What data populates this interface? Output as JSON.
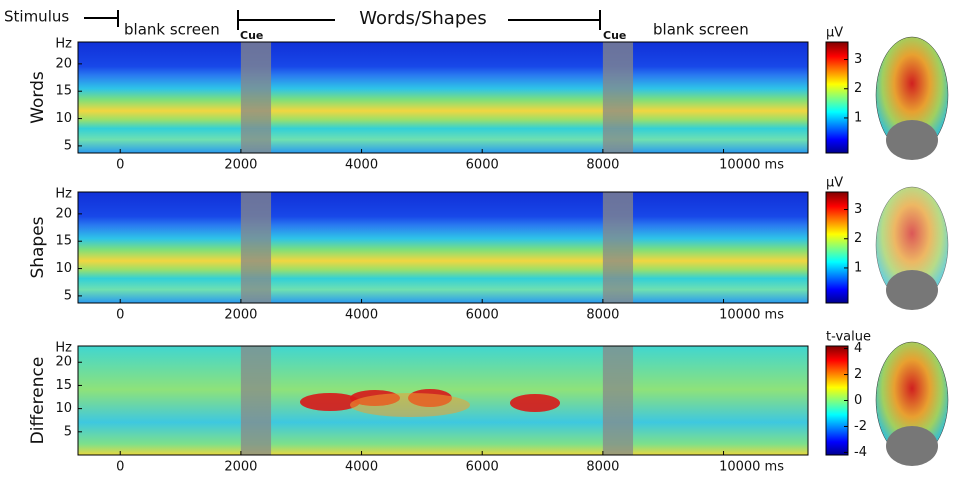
{
  "header": {
    "stimulus": "Stimulus",
    "blank_before": "blank screen",
    "phase": "Words/Shapes",
    "cue_start": "Cue",
    "cue_end": "Cue",
    "blank_after": "blank screen"
  },
  "chart_data": [
    {
      "type": "heatmap",
      "ylabel": "Words",
      "y_unit": "Hz",
      "xlim": [
        -700,
        11400
      ],
      "xticks": [
        0,
        2000,
        4000,
        6000,
        8000,
        {
          "value": 10000,
          "label": "10000 ms"
        }
      ],
      "ylim": [
        3.7,
        24
      ],
      "yticks": [
        5,
        10,
        15,
        20
      ],
      "highlight_spans": [
        [
          2000,
          2500
        ],
        [
          8000,
          8500
        ]
      ],
      "colorbar": {
        "label": "μV",
        "lim": [
          -0.2,
          3.6
        ],
        "ticks": [
          1,
          2,
          3
        ]
      }
    },
    {
      "type": "heatmap",
      "ylabel": "Shapes",
      "y_unit": "Hz",
      "xlim": [
        -700,
        11400
      ],
      "xticks": [
        0,
        2000,
        4000,
        6000,
        8000,
        {
          "value": 10000,
          "label": "10000 ms"
        }
      ],
      "ylim": [
        3.7,
        24
      ],
      "yticks": [
        5,
        10,
        15,
        20
      ],
      "highlight_spans": [
        [
          2000,
          2500
        ],
        [
          8000,
          8500
        ]
      ],
      "colorbar": {
        "label": "μV",
        "lim": [
          -0.2,
          3.6
        ],
        "ticks": [
          1,
          2,
          3
        ]
      }
    },
    {
      "type": "heatmap",
      "ylabel": "Difference",
      "y_unit": "Hz",
      "xlim": [
        -700,
        11400
      ],
      "xticks": [
        0,
        2000,
        4000,
        6000,
        8000,
        {
          "value": 10000,
          "label": "10000 ms"
        }
      ],
      "ylim": [
        0,
        23.5
      ],
      "yticks": [
        5,
        10,
        15,
        20
      ],
      "highlight_spans": [
        [
          2000,
          2500
        ],
        [
          8000,
          8500
        ]
      ],
      "colorbar": {
        "label": "t-value",
        "lim": [
          -4.2,
          4.2
        ],
        "ticks": [
          4,
          2,
          0,
          -2,
          -4
        ]
      }
    }
  ]
}
